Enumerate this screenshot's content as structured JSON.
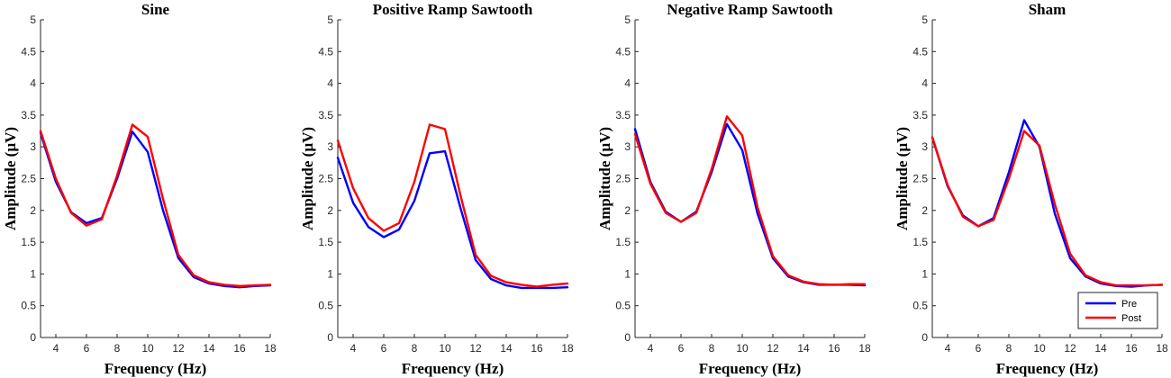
{
  "chart_data": [
    {
      "type": "line",
      "title": "Sine",
      "xlabel": "Frequency (Hz)",
      "ylabel": "Amplitude (µV)",
      "xlim": [
        3,
        18
      ],
      "ylim": [
        0,
        5
      ],
      "xticks": [
        4,
        6,
        8,
        10,
        12,
        14,
        16,
        18
      ],
      "yticks": [
        0,
        0.5,
        1,
        1.5,
        2,
        2.5,
        3,
        3.5,
        4,
        4.5,
        5
      ],
      "x": [
        3,
        4,
        5,
        6,
        7,
        8,
        9,
        10,
        11,
        12,
        13,
        14,
        15,
        16,
        17,
        18
      ],
      "series": [
        {
          "name": "Pre",
          "color": "#0000ff",
          "values": [
            3.22,
            2.45,
            1.97,
            1.8,
            1.88,
            2.5,
            3.24,
            2.92,
            2.0,
            1.25,
            0.95,
            0.85,
            0.81,
            0.79,
            0.81,
            0.82
          ]
        },
        {
          "name": "Post",
          "color": "#ff0000",
          "values": [
            3.25,
            2.5,
            1.96,
            1.76,
            1.86,
            2.55,
            3.35,
            3.16,
            2.18,
            1.3,
            0.98,
            0.87,
            0.83,
            0.81,
            0.82,
            0.83
          ]
        }
      ]
    },
    {
      "type": "line",
      "title": "Positive Ramp Sawtooth",
      "xlabel": "Frequency (Hz)",
      "ylabel": "Amplitude (µV)",
      "xlim": [
        3,
        18
      ],
      "ylim": [
        0,
        5
      ],
      "xticks": [
        4,
        6,
        8,
        10,
        12,
        14,
        16,
        18
      ],
      "yticks": [
        0,
        0.5,
        1,
        1.5,
        2,
        2.5,
        3,
        3.5,
        4,
        4.5,
        5
      ],
      "x": [
        3,
        4,
        5,
        6,
        7,
        8,
        9,
        10,
        11,
        12,
        13,
        14,
        15,
        16,
        17,
        18
      ],
      "series": [
        {
          "name": "Pre",
          "color": "#0000ff",
          "values": [
            2.83,
            2.12,
            1.74,
            1.58,
            1.7,
            2.15,
            2.9,
            2.93,
            2.05,
            1.22,
            0.92,
            0.82,
            0.78,
            0.78,
            0.78,
            0.79
          ]
        },
        {
          "name": "Post",
          "color": "#ff0000",
          "values": [
            3.1,
            2.35,
            1.88,
            1.68,
            1.8,
            2.45,
            3.35,
            3.28,
            2.25,
            1.3,
            0.97,
            0.87,
            0.83,
            0.8,
            0.83,
            0.85
          ]
        }
      ]
    },
    {
      "type": "line",
      "title": "Negative Ramp Sawtooth",
      "xlabel": "Frequency (Hz)",
      "ylabel": "Amplitude (µV)",
      "xlim": [
        3,
        18
      ],
      "ylim": [
        0,
        5
      ],
      "xticks": [
        4,
        6,
        8,
        10,
        12,
        14,
        16,
        18
      ],
      "yticks": [
        0,
        0.5,
        1,
        1.5,
        2,
        2.5,
        3,
        3.5,
        4,
        4.5,
        5
      ],
      "x": [
        3,
        4,
        5,
        6,
        7,
        8,
        9,
        10,
        11,
        12,
        13,
        14,
        15,
        16,
        17,
        18
      ],
      "series": [
        {
          "name": "Pre",
          "color": "#0000ff",
          "values": [
            3.28,
            2.45,
            1.98,
            1.82,
            1.98,
            2.6,
            3.36,
            2.95,
            1.95,
            1.25,
            0.96,
            0.87,
            0.83,
            0.83,
            0.83,
            0.82
          ]
        },
        {
          "name": "Post",
          "color": "#ff0000",
          "values": [
            3.2,
            2.42,
            1.96,
            1.82,
            1.96,
            2.65,
            3.48,
            3.18,
            2.05,
            1.28,
            0.98,
            0.88,
            0.84,
            0.83,
            0.84,
            0.84
          ]
        }
      ]
    },
    {
      "type": "line",
      "title": "Sham",
      "xlabel": "Frequency (Hz)",
      "ylabel": "Amplitude (µV)",
      "xlim": [
        3,
        18
      ],
      "ylim": [
        0,
        5
      ],
      "xticks": [
        4,
        6,
        8,
        10,
        12,
        14,
        16,
        18
      ],
      "yticks": [
        0,
        0.5,
        1,
        1.5,
        2,
        2.5,
        3,
        3.5,
        4,
        4.5,
        5
      ],
      "legend": {
        "position": "bottom-right",
        "entries": [
          "Pre",
          "Post"
        ]
      },
      "x": [
        3,
        4,
        5,
        6,
        7,
        8,
        9,
        10,
        11,
        12,
        13,
        14,
        15,
        16,
        17,
        18
      ],
      "series": [
        {
          "name": "Pre",
          "color": "#0000ff",
          "values": [
            3.15,
            2.38,
            1.92,
            1.75,
            1.88,
            2.6,
            3.42,
            3.0,
            1.95,
            1.25,
            0.96,
            0.85,
            0.81,
            0.8,
            0.82,
            0.83
          ]
        },
        {
          "name": "Post",
          "color": "#ff0000",
          "values": [
            3.15,
            2.4,
            1.9,
            1.75,
            1.85,
            2.5,
            3.25,
            3.02,
            2.1,
            1.32,
            0.98,
            0.87,
            0.82,
            0.82,
            0.82,
            0.83
          ]
        }
      ]
    }
  ]
}
